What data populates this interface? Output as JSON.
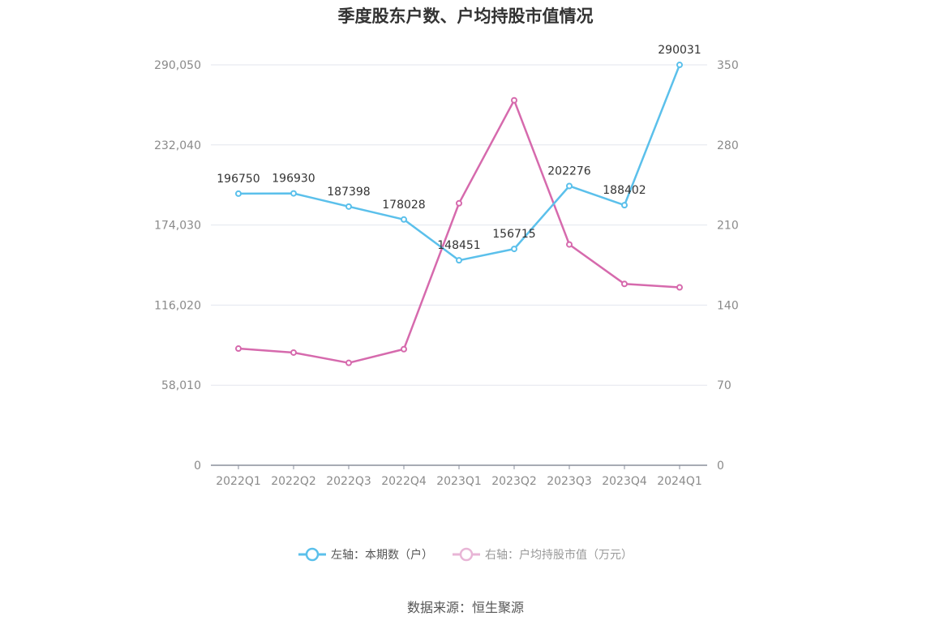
{
  "title": "季度股东户数、户均持股市值情况",
  "source": "数据来源：恒生聚源",
  "chart_data": {
    "type": "line",
    "categories": [
      "2022Q1",
      "2022Q2",
      "2022Q3",
      "2022Q4",
      "2023Q1",
      "2023Q2",
      "2023Q3",
      "2023Q4",
      "2024Q1"
    ],
    "left_axis": {
      "ticks": [
        "0",
        "58,010",
        "116,020",
        "174,030",
        "232,040",
        "290,050"
      ],
      "ylim": [
        0,
        290050
      ]
    },
    "right_axis": {
      "ticks": [
        "0",
        "70",
        "140",
        "210",
        "280",
        "350"
      ],
      "ylim": [
        0,
        350
      ]
    },
    "series": [
      {
        "name": "左轴：本期数（户）",
        "axis": "left",
        "color": "#5bc0eb",
        "values": [
          196750,
          196930,
          187398,
          178028,
          148451,
          156715,
          202276,
          188402,
          290031
        ],
        "labels": [
          "196750",
          "196930",
          "187398",
          "178028",
          "148451",
          "156715",
          "202276",
          "188402",
          "290031"
        ]
      },
      {
        "name": "右轴：户均持股市值（万元）",
        "axis": "right",
        "color": "#d66aad",
        "values": [
          102,
          98.5,
          89.5,
          101.5,
          229,
          319,
          193,
          158.5,
          155.5
        ]
      }
    ],
    "grid": true,
    "legend_position": "bottom"
  }
}
